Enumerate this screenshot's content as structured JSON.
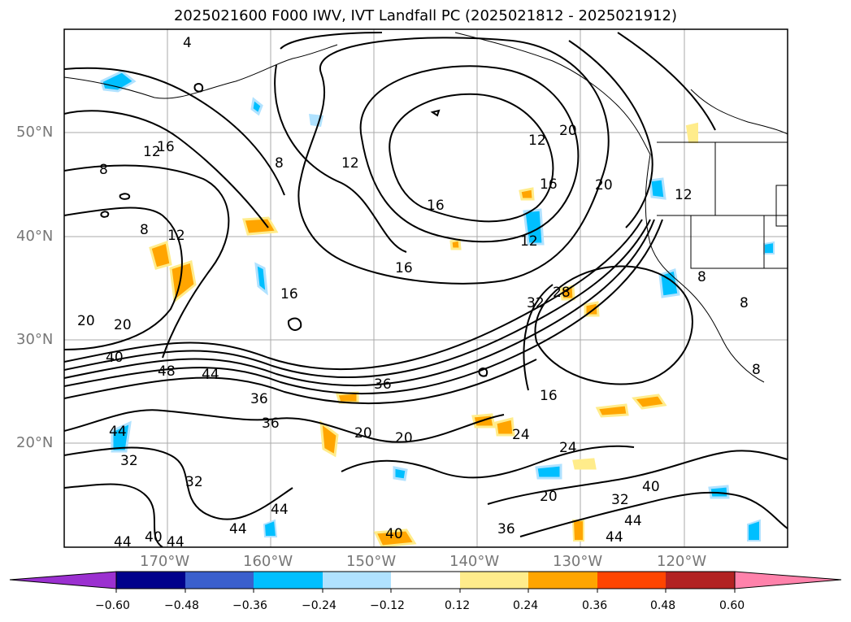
{
  "title": "2025021600 F000 IWV, IVT Landfall PC (2025021812 - 2025021912)",
  "lat_labels": [
    "50°N",
    "40°N",
    "30°N",
    "20°N"
  ],
  "lon_labels": [
    "170°W",
    "160°W",
    "150°W",
    "140°W",
    "130°W",
    "120°W"
  ],
  "colorbar": {
    "ticks": [
      "−0.60",
      "−0.48",
      "−0.36",
      "−0.24",
      "−0.12",
      "0.12",
      "0.24",
      "0.36",
      "0.48",
      "0.60"
    ],
    "colors": [
      "#9b30d0",
      "#00008b",
      "#3a5fcd",
      "#00bfff",
      "#b0e2ff",
      "#ffffff",
      "#ffec8b",
      "#ffa500",
      "#ff4500",
      "#b22222",
      "#ff82ab"
    ]
  },
  "contour_labels": [
    "4",
    "8",
    "12",
    "16",
    "20",
    "24",
    "28",
    "32",
    "36",
    "40",
    "44",
    "48"
  ],
  "colors": {
    "positive_fill": "#ffa500",
    "positive_light": "#ffec8b",
    "negative_fill": "#00bfff",
    "negative_light": "#b0e2ff",
    "contour": "#000000",
    "grid": "#aaaaaa"
  }
}
